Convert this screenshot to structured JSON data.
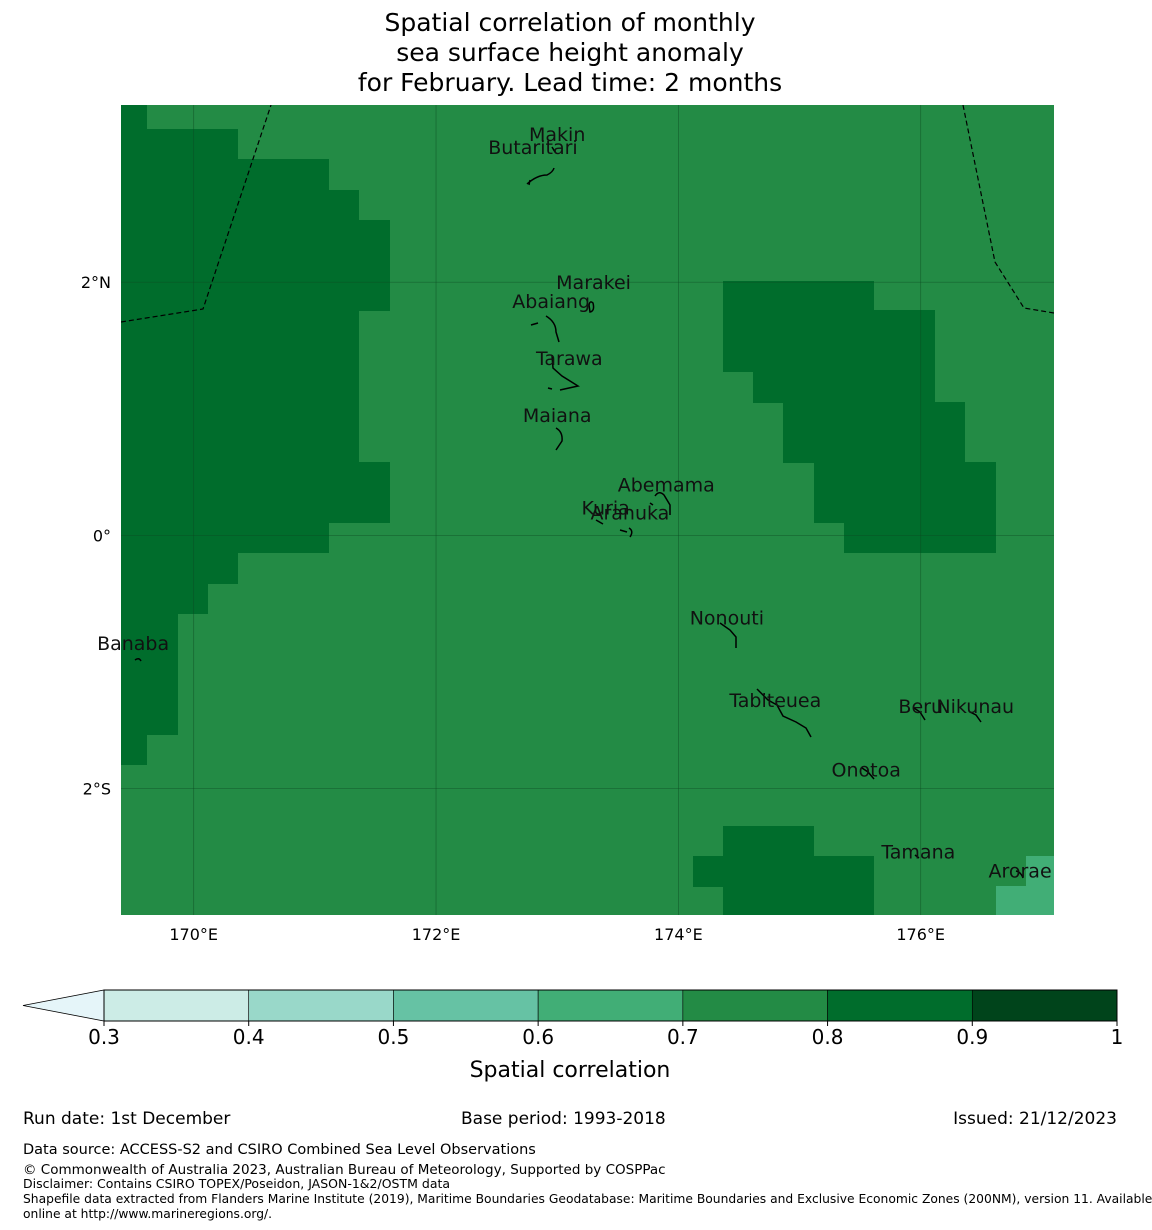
{
  "title": {
    "line1": "Spatial correlation of monthly",
    "line2": "sea surface height anomaly",
    "line3": "for February. Lead time: 2 months"
  },
  "map": {
    "lon_range": [
      169.4,
      177.1
    ],
    "lat_range": [
      -3.0,
      3.4
    ],
    "lon_ticks": [
      {
        "value": 170,
        "label": "170°E"
      },
      {
        "value": 172,
        "label": "172°E"
      },
      {
        "value": 174,
        "label": "174°E"
      },
      {
        "value": 176,
        "label": "176°E"
      }
    ],
    "lat_ticks": [
      {
        "value": 2,
        "label": "2°N"
      },
      {
        "value": 0,
        "label": "0°"
      },
      {
        "value": -2,
        "label": "2°S"
      }
    ],
    "islands": [
      {
        "name": "Makin",
        "lon": 173.0,
        "lat": 3.17
      },
      {
        "name": "Butaritari",
        "lon": 172.8,
        "lat": 3.07
      },
      {
        "name": "Marakei",
        "lon": 173.3,
        "lat": 2.0
      },
      {
        "name": "Abaiang",
        "lon": 172.95,
        "lat": 1.85
      },
      {
        "name": "Tarawa",
        "lon": 173.1,
        "lat": 1.4
      },
      {
        "name": "Maiana",
        "lon": 173.0,
        "lat": 0.95
      },
      {
        "name": "Abemama",
        "lon": 173.9,
        "lat": 0.4
      },
      {
        "name": "Kuria",
        "lon": 173.4,
        "lat": 0.22
      },
      {
        "name": "Aranuka",
        "lon": 173.6,
        "lat": 0.18
      },
      {
        "name": "Nonouti",
        "lon": 174.4,
        "lat": -0.65
      },
      {
        "name": "Banaba",
        "lon": 169.5,
        "lat": -0.85
      },
      {
        "name": "Tabiteuea",
        "lon": 174.8,
        "lat": -1.3
      },
      {
        "name": "Beru",
        "lon": 176.0,
        "lat": -1.35
      },
      {
        "name": "Nikunau",
        "lon": 176.45,
        "lat": -1.35
      },
      {
        "name": "Onotoa",
        "lon": 175.55,
        "lat": -1.85
      },
      {
        "name": "Tamana",
        "lon": 175.98,
        "lat": -2.5
      },
      {
        "name": "Arorae",
        "lon": 176.82,
        "lat": -2.65
      }
    ]
  },
  "legend": {
    "title": "Spatial correlation",
    "ticks": [
      "0.3",
      "0.4",
      "0.5",
      "0.6",
      "0.7",
      "0.8",
      "0.9",
      "1"
    ],
    "colors": [
      "#e5f5f9",
      "#ccece6",
      "#99d8c9",
      "#66c2a4",
      "#41ae76",
      "#238b45",
      "#006d2c",
      "#00441b"
    ],
    "levels": [
      "<0.3",
      "0.3-0.4",
      "0.4-0.5",
      "0.5-0.6",
      "0.6-0.7",
      "0.7-0.8",
      "0.8-0.9",
      "0.9-1"
    ]
  },
  "footer": {
    "run_date": "Run date: 1st December",
    "base_period": "Base period: 1993-2018",
    "issued": "Issued: 21/12/2023",
    "data_source": "Data source: ACCESS-S2 and CSIRO Combined Sea Level Observations",
    "copyright": "© Commonwealth of Australia 2023, Australian Bureau of Meteorology, Supported by COSPPac",
    "disclaimer": "Disclaimer: Contains CSIRO TOPEX/Poseidon, JASON-1&2/OSTM data",
    "shapefile_1": "Shapefile data extracted from Flanders Marine Institute (2019), Maritime Boundaries Geodatabase: Maritime Boundaries and Exclusive Economic Zones (200NM), version 11. Available",
    "shapefile_2": "online at http://www.marineregions.org/."
  }
}
